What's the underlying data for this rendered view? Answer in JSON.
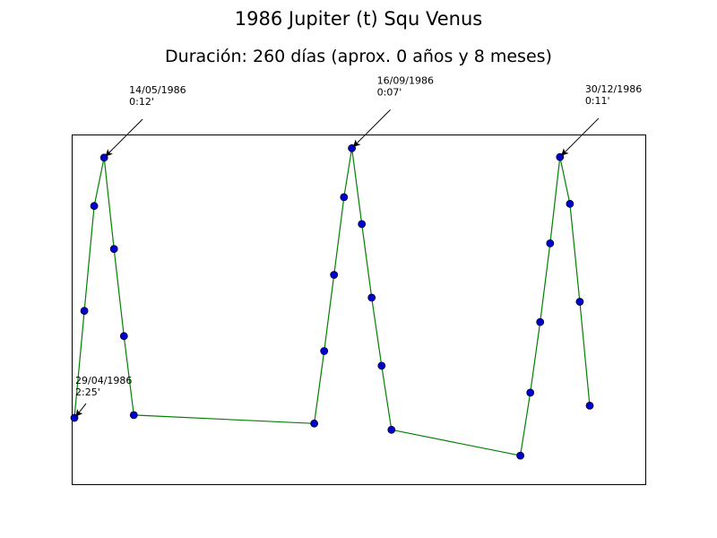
{
  "chart_data": {
    "type": "line",
    "title": "1986 Jupiter (t) Squ Venus",
    "subtitle": "Duración: 260 días (aprox. 0 años y 8 meses)",
    "xlabel": "",
    "ylabel": "",
    "xlim": [
      "1986-04-29",
      "1987-01-15"
    ],
    "ylim": [
      0,
      1
    ],
    "grid": false,
    "colors": {
      "line": "#008000",
      "marker_fill": "#0000cc",
      "marker_edge": "#000033"
    },
    "points": [
      {
        "x": "1986-04-29",
        "y": 0.191
      },
      {
        "x": "1986-05-04",
        "y": 0.497
      },
      {
        "x": "1986-05-09",
        "y": 0.797
      },
      {
        "x": "1986-05-14",
        "y": 0.935
      },
      {
        "x": "1986-05-19",
        "y": 0.674
      },
      {
        "x": "1986-05-24",
        "y": 0.425
      },
      {
        "x": "1986-05-29",
        "y": 0.199
      },
      {
        "x": "1986-08-28",
        "y": 0.175
      },
      {
        "x": "1986-09-02",
        "y": 0.382
      },
      {
        "x": "1986-09-07",
        "y": 0.6
      },
      {
        "x": "1986-09-12",
        "y": 0.822
      },
      {
        "x": "1986-09-16",
        "y": 0.962
      },
      {
        "x": "1986-09-21",
        "y": 0.745
      },
      {
        "x": "1986-09-26",
        "y": 0.535
      },
      {
        "x": "1986-10-01",
        "y": 0.34
      },
      {
        "x": "1986-10-06",
        "y": 0.157
      },
      {
        "x": "1986-12-10",
        "y": 0.083
      },
      {
        "x": "1986-12-15",
        "y": 0.263
      },
      {
        "x": "1986-12-20",
        "y": 0.465
      },
      {
        "x": "1986-12-25",
        "y": 0.69
      },
      {
        "x": "1986-12-30",
        "y": 0.937
      },
      {
        "x": "1987-01-04",
        "y": 0.803
      },
      {
        "x": "1987-01-09",
        "y": 0.523
      },
      {
        "x": "1987-01-14",
        "y": 0.226
      }
    ],
    "annotations": [
      {
        "x": "1986-04-29",
        "y": 0.191,
        "date": "29/04/1986",
        "time": "2:25'"
      },
      {
        "x": "1986-05-14",
        "y": 0.935,
        "date": "14/05/1986",
        "time": "0:12'"
      },
      {
        "x": "1986-09-16",
        "y": 0.962,
        "date": "16/09/1986",
        "time": "0:07'"
      },
      {
        "x": "1986-12-30",
        "y": 0.937,
        "date": "30/12/1986",
        "time": "0:11'"
      }
    ]
  }
}
